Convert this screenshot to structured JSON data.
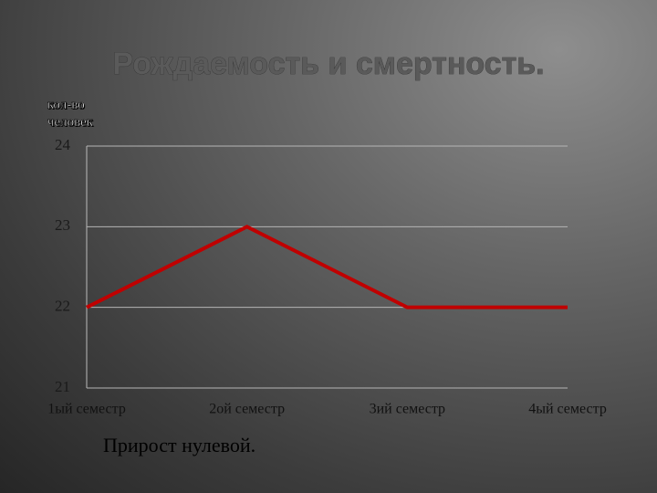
{
  "chart_data": {
    "type": "line",
    "title": "Рождаемость и смертность.",
    "ylabel": "кол-во человек",
    "categories": [
      "1ый семестр",
      "2ой семестр",
      "3ий семестр",
      "4ый семестр"
    ],
    "series": [
      {
        "name": "Прирост",
        "color": "#c00000",
        "values": [
          22,
          23,
          22,
          22
        ]
      }
    ],
    "ylim": [
      21,
      24
    ],
    "yticks": [
      21,
      22,
      23,
      24
    ],
    "grid": true,
    "caption": "Прирост нулевой."
  }
}
